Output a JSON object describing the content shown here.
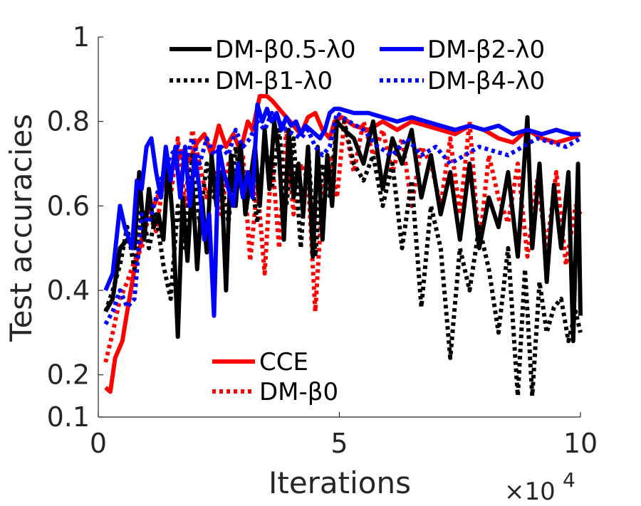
{
  "chart_data": {
    "type": "line",
    "xlabel": "Iterations",
    "ylabel": "Test accuracies",
    "x_exponent_label": "×10",
    "x_exponent_power": "4",
    "xlim": [
      0,
      10
    ],
    "ylim": [
      0.1,
      1
    ],
    "xticks": [
      0,
      5,
      10
    ],
    "xtick_labels": [
      "0",
      "5",
      "10"
    ],
    "yticks": [
      0.1,
      0.2,
      0.4,
      0.6,
      0.8,
      1
    ],
    "ytick_labels": [
      "0.1",
      "0.2",
      "0.4",
      "0.6",
      "0.8",
      "1"
    ],
    "legend_top": [
      "DM-β0.5-λ0",
      "DM-β2-λ0",
      "DM-β1-λ0",
      "DM-β4-λ0"
    ],
    "legend_bottom": [
      "CCE",
      "DM-β0"
    ],
    "series": [
      {
        "name": "CCE",
        "color": "#ff0000",
        "dash": "solid",
        "x": [
          0.15,
          0.25,
          0.35,
          0.5,
          0.6,
          0.75,
          0.9,
          1.0,
          1.15,
          1.3,
          1.45,
          1.6,
          1.75,
          1.9,
          2.05,
          2.2,
          2.35,
          2.5,
          2.65,
          2.8,
          2.95,
          3.1,
          3.2,
          3.35,
          3.5,
          3.6,
          3.75,
          3.9,
          4.05,
          4.2,
          4.35,
          4.5,
          4.65,
          4.8,
          4.9,
          5.05,
          5.3,
          5.6,
          5.9,
          6.2,
          6.5,
          6.8,
          7.1,
          7.4,
          7.7,
          8.0,
          8.3,
          8.6,
          8.9,
          9.2,
          9.5,
          9.8,
          10.0
        ],
        "y": [
          0.17,
          0.16,
          0.24,
          0.28,
          0.35,
          0.45,
          0.52,
          0.58,
          0.6,
          0.64,
          0.68,
          0.7,
          0.73,
          0.71,
          0.75,
          0.77,
          0.72,
          0.79,
          0.74,
          0.77,
          0.73,
          0.8,
          0.78,
          0.86,
          0.86,
          0.85,
          0.83,
          0.81,
          0.79,
          0.77,
          0.81,
          0.82,
          0.78,
          0.76,
          0.8,
          0.81,
          0.79,
          0.78,
          0.8,
          0.78,
          0.8,
          0.79,
          0.78,
          0.77,
          0.79,
          0.78,
          0.76,
          0.75,
          0.78,
          0.76,
          0.75,
          0.76,
          0.77
        ]
      },
      {
        "name": "DM-β0",
        "color": "#ff0000",
        "dash": "dotted",
        "x": [
          0.15,
          0.3,
          0.45,
          0.6,
          0.75,
          0.9,
          1.05,
          1.2,
          1.35,
          1.5,
          1.65,
          1.8,
          1.95,
          2.1,
          2.25,
          2.4,
          2.55,
          2.7,
          2.85,
          3.0,
          3.15,
          3.3,
          3.45,
          3.6,
          3.75,
          3.9,
          4.05,
          4.2,
          4.35,
          4.5,
          4.65,
          4.8,
          4.95,
          5.1,
          5.3,
          5.5,
          5.7,
          5.9,
          6.1,
          6.3,
          6.5,
          6.7,
          6.9,
          7.1,
          7.3,
          7.5,
          7.7,
          7.9,
          8.1,
          8.3,
          8.5,
          8.7,
          8.9,
          9.1,
          9.3,
          9.5,
          9.7,
          9.9,
          10.0
        ],
        "y": [
          0.23,
          0.3,
          0.38,
          0.42,
          0.47,
          0.5,
          0.58,
          0.54,
          0.66,
          0.62,
          0.76,
          0.6,
          0.78,
          0.7,
          0.62,
          0.68,
          0.58,
          0.7,
          0.64,
          0.72,
          0.47,
          0.65,
          0.44,
          0.72,
          0.5,
          0.78,
          0.58,
          0.7,
          0.66,
          0.35,
          0.63,
          0.72,
          0.62,
          0.8,
          0.68,
          0.8,
          0.72,
          0.78,
          0.68,
          0.76,
          0.6,
          0.74,
          0.7,
          0.6,
          0.76,
          0.58,
          0.8,
          0.5,
          0.72,
          0.62,
          0.56,
          0.7,
          0.48,
          0.66,
          0.5,
          0.68,
          0.46,
          0.6,
          0.58
        ]
      },
      {
        "name": "DM-β0.5-λ0",
        "color": "#000000",
        "dash": "solid",
        "x": [
          0.15,
          0.3,
          0.45,
          0.6,
          0.75,
          0.85,
          0.95,
          1.05,
          1.15,
          1.25,
          1.35,
          1.45,
          1.55,
          1.65,
          1.75,
          1.85,
          1.95,
          2.05,
          2.15,
          2.25,
          2.35,
          2.45,
          2.55,
          2.65,
          2.75,
          2.85,
          2.95,
          3.05,
          3.15,
          3.25,
          3.35,
          3.45,
          3.55,
          3.65,
          3.75,
          3.85,
          3.95,
          4.05,
          4.15,
          4.25,
          4.35,
          4.45,
          4.55,
          4.65,
          4.75,
          4.85,
          4.95,
          5.1,
          5.3,
          5.5,
          5.7,
          5.9,
          6.1,
          6.3,
          6.5,
          6.7,
          6.9,
          7.1,
          7.3,
          7.5,
          7.7,
          7.9,
          8.1,
          8.3,
          8.5,
          8.7,
          8.9,
          9.0,
          9.15,
          9.3,
          9.45,
          9.6,
          9.75,
          9.85,
          9.95,
          10.0
        ],
        "y": [
          0.35,
          0.38,
          0.5,
          0.52,
          0.5,
          0.68,
          0.52,
          0.64,
          0.55,
          0.58,
          0.52,
          0.7,
          0.56,
          0.29,
          0.62,
          0.47,
          0.66,
          0.45,
          0.62,
          0.49,
          0.72,
          0.6,
          0.68,
          0.4,
          0.72,
          0.6,
          0.75,
          0.58,
          0.66,
          0.74,
          0.6,
          0.78,
          0.64,
          0.8,
          0.72,
          0.52,
          0.78,
          0.62,
          0.7,
          0.58,
          0.74,
          0.48,
          0.74,
          0.52,
          0.72,
          0.6,
          0.8,
          0.78,
          0.76,
          0.7,
          0.8,
          0.64,
          0.76,
          0.7,
          0.78,
          0.62,
          0.72,
          0.58,
          0.68,
          0.52,
          0.7,
          0.5,
          0.62,
          0.55,
          0.68,
          0.48,
          0.81,
          0.5,
          0.7,
          0.42,
          0.65,
          0.5,
          0.68,
          0.28,
          0.7,
          0.34
        ]
      },
      {
        "name": "DM-β1-λ0",
        "color": "#000000",
        "dash": "dotted",
        "x": [
          0.15,
          0.3,
          0.45,
          0.6,
          0.75,
          0.9,
          1.05,
          1.2,
          1.35,
          1.5,
          1.65,
          1.8,
          1.95,
          2.1,
          2.25,
          2.4,
          2.55,
          2.7,
          2.85,
          3.0,
          3.15,
          3.3,
          3.45,
          3.6,
          3.75,
          3.9,
          4.05,
          4.2,
          4.35,
          4.5,
          4.65,
          4.8,
          4.95,
          5.1,
          5.3,
          5.5,
          5.7,
          5.9,
          6.1,
          6.3,
          6.5,
          6.7,
          6.9,
          7.1,
          7.3,
          7.5,
          7.7,
          7.9,
          8.1,
          8.3,
          8.5,
          8.7,
          8.85,
          9.0,
          9.15,
          9.3,
          9.45,
          9.6,
          9.75,
          9.9,
          10.0
        ],
        "y": [
          0.35,
          0.4,
          0.46,
          0.55,
          0.45,
          0.6,
          0.5,
          0.58,
          0.46,
          0.38,
          0.6,
          0.5,
          0.72,
          0.56,
          0.7,
          0.62,
          0.66,
          0.56,
          0.74,
          0.62,
          0.68,
          0.56,
          0.76,
          0.64,
          0.78,
          0.6,
          0.76,
          0.5,
          0.74,
          0.48,
          0.7,
          0.62,
          0.8,
          0.8,
          0.7,
          0.66,
          0.72,
          0.6,
          0.7,
          0.5,
          0.66,
          0.36,
          0.6,
          0.5,
          0.24,
          0.5,
          0.4,
          0.55,
          0.45,
          0.3,
          0.5,
          0.15,
          0.45,
          0.15,
          0.42,
          0.3,
          0.36,
          0.38,
          0.28,
          0.35,
          0.3
        ]
      },
      {
        "name": "DM-β2-λ0",
        "color": "#0000ff",
        "dash": "solid",
        "x": [
          0.15,
          0.3,
          0.45,
          0.55,
          0.7,
          0.8,
          0.9,
          1.0,
          1.1,
          1.2,
          1.3,
          1.4,
          1.5,
          1.6,
          1.7,
          1.8,
          1.9,
          2.0,
          2.1,
          2.2,
          2.3,
          2.4,
          2.5,
          2.6,
          2.7,
          2.8,
          2.9,
          3.0,
          3.1,
          3.2,
          3.3,
          3.4,
          3.5,
          3.6,
          3.7,
          3.8,
          3.9,
          4.0,
          4.1,
          4.2,
          4.3,
          4.4,
          4.5,
          4.6,
          4.7,
          4.8,
          4.9,
          5.0,
          5.3,
          5.6,
          5.9,
          6.2,
          6.5,
          6.8,
          7.1,
          7.4,
          7.7,
          8.0,
          8.3,
          8.6,
          8.9,
          9.2,
          9.5,
          9.8,
          10.0
        ],
        "y": [
          0.4,
          0.44,
          0.6,
          0.55,
          0.5,
          0.66,
          0.64,
          0.74,
          0.76,
          0.68,
          0.62,
          0.74,
          0.66,
          0.74,
          0.62,
          0.74,
          0.6,
          0.72,
          0.64,
          0.52,
          0.58,
          0.34,
          0.74,
          0.68,
          0.64,
          0.6,
          0.7,
          0.62,
          0.68,
          0.62,
          0.84,
          0.8,
          0.83,
          0.8,
          0.82,
          0.78,
          0.81,
          0.79,
          0.8,
          0.77,
          0.79,
          0.78,
          0.77,
          0.76,
          0.78,
          0.82,
          0.83,
          0.83,
          0.82,
          0.82,
          0.81,
          0.8,
          0.81,
          0.8,
          0.79,
          0.78,
          0.79,
          0.78,
          0.79,
          0.77,
          0.78,
          0.77,
          0.78,
          0.77,
          0.77
        ]
      },
      {
        "name": "DM-β4-λ0",
        "color": "#0000ff",
        "dash": "dotted",
        "x": [
          0.15,
          0.3,
          0.45,
          0.6,
          0.75,
          0.9,
          1.05,
          1.2,
          1.35,
          1.5,
          1.65,
          1.8,
          1.95,
          2.1,
          2.25,
          2.4,
          2.55,
          2.7,
          2.85,
          3.0,
          3.15,
          3.3,
          3.45,
          3.6,
          3.75,
          3.9,
          4.05,
          4.2,
          4.35,
          4.5,
          4.65,
          4.8,
          4.95,
          5.2,
          5.5,
          5.8,
          6.1,
          6.4,
          6.7,
          7.0,
          7.3,
          7.6,
          7.9,
          8.2,
          8.5,
          8.8,
          9.1,
          9.4,
          9.7,
          10.0
        ],
        "y": [
          0.32,
          0.35,
          0.4,
          0.36,
          0.38,
          0.58,
          0.56,
          0.62,
          0.68,
          0.72,
          0.74,
          0.7,
          0.76,
          0.7,
          0.76,
          0.72,
          0.74,
          0.72,
          0.78,
          0.74,
          0.76,
          0.8,
          0.78,
          0.82,
          0.8,
          0.78,
          0.77,
          0.76,
          0.78,
          0.74,
          0.72,
          0.74,
          0.82,
          0.8,
          0.78,
          0.74,
          0.72,
          0.76,
          0.72,
          0.74,
          0.7,
          0.72,
          0.74,
          0.73,
          0.72,
          0.74,
          0.76,
          0.75,
          0.74,
          0.76
        ]
      }
    ]
  }
}
